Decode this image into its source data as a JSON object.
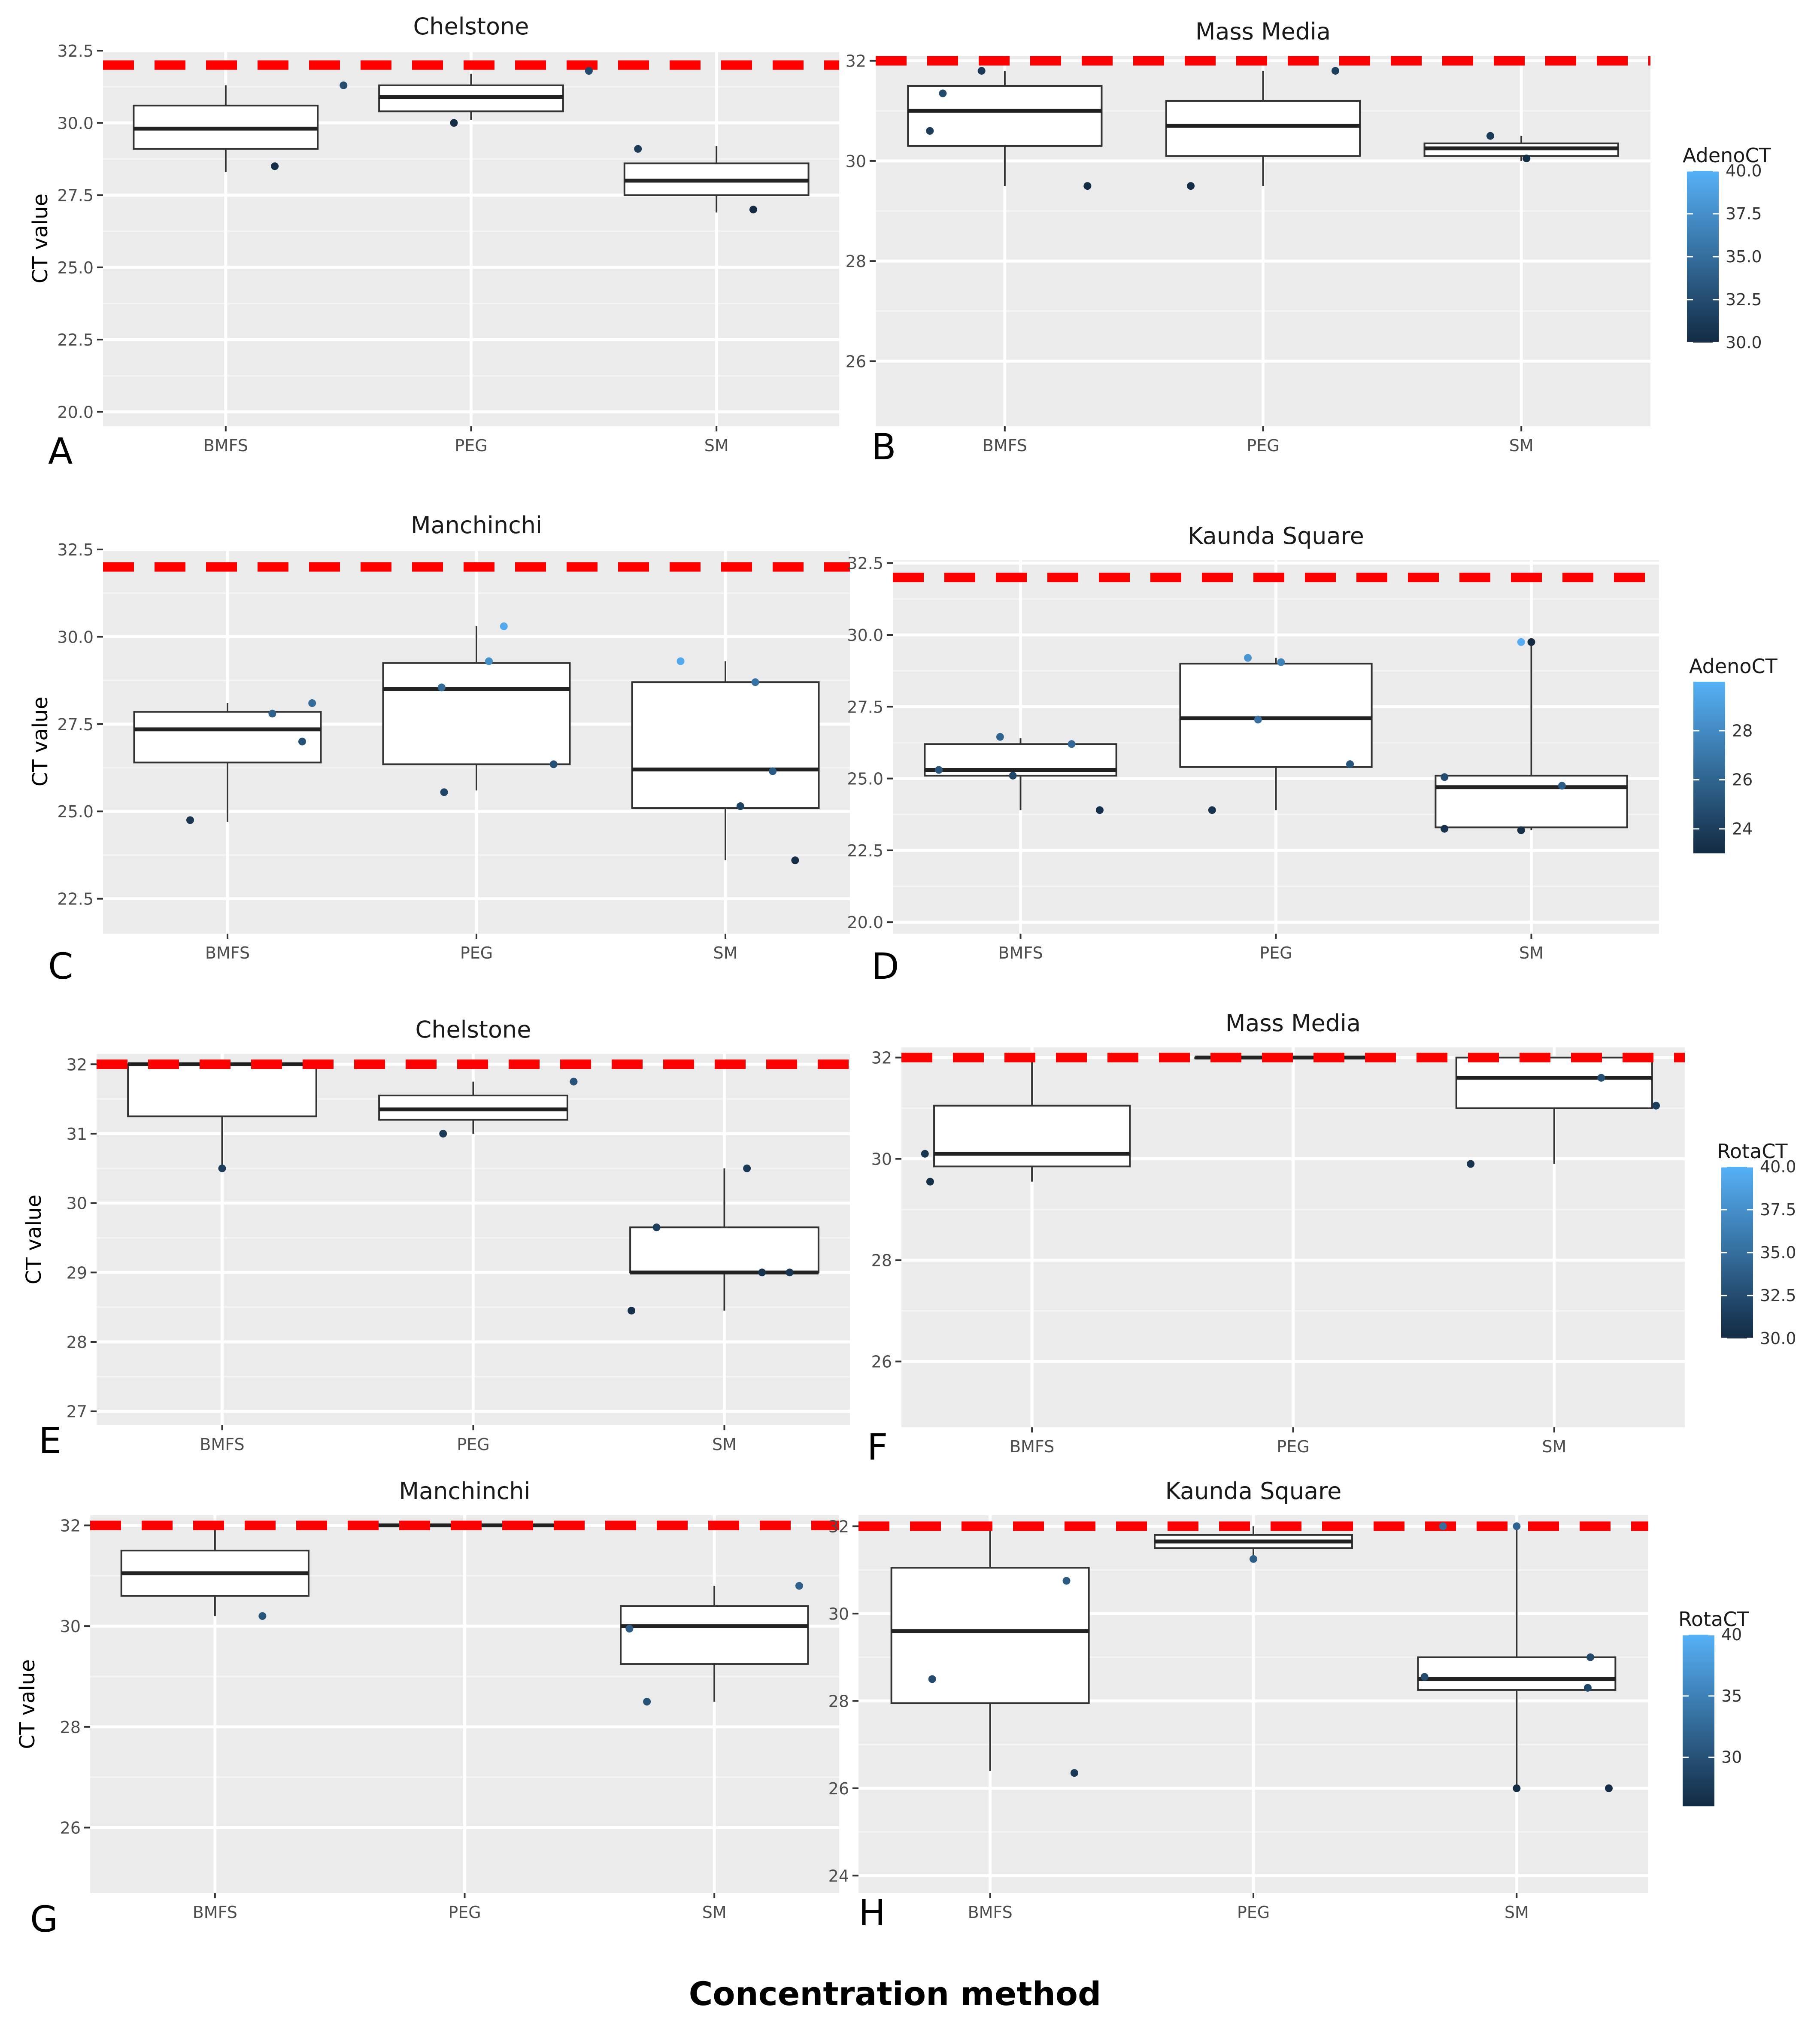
{
  "figure": {
    "xlabel": "Concentration method"
  },
  "colors": {
    "panel_bg": "#ebebeb",
    "grid_major": "#ffffff",
    "grid_minor": "#f4f4f4",
    "threshold": "#ff0000",
    "box_fill": "#ffffff",
    "box_line": "#333333",
    "dot_low": "#132b43",
    "dot_high": "#56b1f7"
  },
  "legends": [
    {
      "title": "AdenoCT",
      "range": [
        30,
        40
      ],
      "ticks": [
        "40.0",
        "37.5",
        "35.0",
        "32.5",
        "30.0"
      ],
      "tick_values": [
        40,
        37.5,
        35,
        32.5,
        30
      ]
    },
    {
      "title": "AdenoCT",
      "range": [
        23,
        30
      ],
      "ticks": [
        "28",
        "26",
        "24"
      ],
      "tick_values": [
        28,
        26,
        24
      ]
    },
    {
      "title": "RotaCT",
      "range": [
        30,
        40
      ],
      "ticks": [
        "40.0",
        "37.5",
        "35.0",
        "32.5",
        "30.0"
      ],
      "tick_values": [
        40,
        37.5,
        35,
        32.5,
        30
      ]
    },
    {
      "title": "RotaCT",
      "range": [
        26,
        40
      ],
      "ticks": [
        "40",
        "35",
        "30"
      ],
      "tick_values": [
        40,
        35,
        30
      ]
    }
  ],
  "chart_data": [
    {
      "panel": "A",
      "type": "box",
      "title": "Chelstone",
      "ylabel": "CT value",
      "threshold": 32,
      "ylim": [
        19.5,
        32.5
      ],
      "yticks": [
        "32.5",
        "30.0",
        "27.5",
        "25.0",
        "22.5",
        "20.0"
      ],
      "ytick_values": [
        32.5,
        30,
        27.5,
        25,
        22.5,
        20
      ],
      "categories": [
        "BMFS",
        "PEG",
        "SM"
      ],
      "boxes": [
        {
          "low": 28.3,
          "q1": 29.1,
          "median": 29.8,
          "q3": 30.6,
          "high": 31.3
        },
        {
          "low": 30.1,
          "q1": 30.4,
          "median": 30.9,
          "q3": 31.3,
          "high": 31.7
        },
        {
          "low": 26.9,
          "q1": 27.5,
          "median": 28.0,
          "q3": 28.6,
          "high": 29.2
        }
      ],
      "points": [
        {
          "cat": 0,
          "dx": 0.2,
          "y": 28.5,
          "c": 30.2
        },
        {
          "cat": 0,
          "dx": 0.48,
          "y": 31.3,
          "c": 32.5
        },
        {
          "cat": 1,
          "dx": -0.07,
          "y": 30.0,
          "c": 30.1
        },
        {
          "cat": 1,
          "dx": 0.48,
          "y": 31.8,
          "c": 32.2
        },
        {
          "cat": 2,
          "dx": -0.32,
          "y": 29.1,
          "c": 31.2
        },
        {
          "cat": 2,
          "dx": 0.15,
          "y": 27.0,
          "c": 30.0
        }
      ]
    },
    {
      "panel": "B",
      "type": "box",
      "title": "Mass Media",
      "ylabel": "",
      "threshold": 32,
      "ylim": [
        24.7,
        32.1
      ],
      "yticks": [
        "32",
        "30",
        "28",
        "26"
      ],
      "ytick_values": [
        32,
        30,
        28,
        26
      ],
      "categories": [
        "BMFS",
        "PEG",
        "SM"
      ],
      "boxes": [
        {
          "low": 29.5,
          "q1": 30.3,
          "median": 31.0,
          "q3": 31.5,
          "high": 31.8
        },
        {
          "low": 29.5,
          "q1": 30.1,
          "median": 30.7,
          "q3": 31.2,
          "high": 31.8
        },
        {
          "low": 30.0,
          "q1": 30.1,
          "median": 30.25,
          "q3": 30.35,
          "high": 30.5
        }
      ],
      "points": [
        {
          "cat": 0,
          "dx": -0.29,
          "y": 30.6,
          "c": 31.3
        },
        {
          "cat": 0,
          "dx": -0.24,
          "y": 31.35,
          "c": 32.4
        },
        {
          "cat": 0,
          "dx": -0.09,
          "y": 31.8,
          "c": 31.0
        },
        {
          "cat": 0,
          "dx": 0.32,
          "y": 29.5,
          "c": 30.0
        },
        {
          "cat": 1,
          "dx": -0.28,
          "y": 29.5,
          "c": 30.1
        },
        {
          "cat": 1,
          "dx": 0.28,
          "y": 31.8,
          "c": 31.4
        },
        {
          "cat": 2,
          "dx": -0.12,
          "y": 30.5,
          "c": 31.2
        },
        {
          "cat": 2,
          "dx": 0.02,
          "y": 30.05,
          "c": 30.2
        }
      ]
    },
    {
      "panel": "C",
      "type": "box",
      "title": "Manchinchi",
      "ylabel": "CT value",
      "threshold": 32,
      "ylim": [
        21.5,
        32.5
      ],
      "yticks": [
        "32.5",
        "30.0",
        "27.5",
        "25.0",
        "22.5"
      ],
      "ytick_values": [
        32.5,
        30,
        27.5,
        25,
        22.5
      ],
      "categories": [
        "BMFS",
        "PEG",
        "SM"
      ],
      "boxes": [
        {
          "low": 24.7,
          "q1": 26.4,
          "median": 27.35,
          "q3": 27.85,
          "high": 28.1
        },
        {
          "low": 25.6,
          "q1": 26.35,
          "median": 28.5,
          "q3": 29.25,
          "high": 30.3
        },
        {
          "low": 23.6,
          "q1": 25.1,
          "median": 26.2,
          "q3": 28.7,
          "high": 29.3
        }
      ],
      "points": [
        {
          "cat": 0,
          "dx": -0.15,
          "y": 24.75,
          "c": 23.6
        },
        {
          "cat": 0,
          "dx": 0.18,
          "y": 27.8,
          "c": 25.8
        },
        {
          "cat": 0,
          "dx": 0.3,
          "y": 27.0,
          "c": 25.0
        },
        {
          "cat": 0,
          "dx": 0.34,
          "y": 28.1,
          "c": 26.4
        },
        {
          "cat": 1,
          "dx": -0.13,
          "y": 25.55,
          "c": 24.3
        },
        {
          "cat": 1,
          "dx": -0.14,
          "y": 28.55,
          "c": 26.4
        },
        {
          "cat": 1,
          "dx": 0.05,
          "y": 29.3,
          "c": 28.2
        },
        {
          "cat": 1,
          "dx": 0.11,
          "y": 30.3,
          "c": 29.6
        },
        {
          "cat": 1,
          "dx": 0.31,
          "y": 26.35,
          "c": 25.0
        },
        {
          "cat": 2,
          "dx": -0.18,
          "y": 29.3,
          "c": 29.6
        },
        {
          "cat": 2,
          "dx": 0.12,
          "y": 28.7,
          "c": 26.8
        },
        {
          "cat": 2,
          "dx": 0.19,
          "y": 26.15,
          "c": 25.4
        },
        {
          "cat": 2,
          "dx": 0.06,
          "y": 25.15,
          "c": 24.2
        },
        {
          "cat": 2,
          "dx": 0.28,
          "y": 23.6,
          "c": 23.2
        }
      ]
    },
    {
      "panel": "D",
      "type": "box",
      "title": "Kaunda Square",
      "ylabel": "",
      "threshold": 32,
      "ylim": [
        19.6,
        32.6
      ],
      "yticks": [
        "32.5",
        "30.0",
        "27.5",
        "25.0",
        "22.5",
        "20.0"
      ],
      "ytick_values": [
        32.5,
        30,
        27.5,
        25,
        22.5,
        20
      ],
      "categories": [
        "BMFS",
        "PEG",
        "SM"
      ],
      "boxes": [
        {
          "low": 23.9,
          "q1": 25.1,
          "median": 25.3,
          "q3": 26.2,
          "high": 26.4
        },
        {
          "low": 23.9,
          "q1": 25.4,
          "median": 27.1,
          "q3": 29.0,
          "high": 29.2
        },
        {
          "low": 23.2,
          "q1": 23.3,
          "median": 24.7,
          "q3": 25.1,
          "high": 29.7
        }
      ],
      "points": [
        {
          "cat": 0,
          "dx": -0.32,
          "y": 25.3,
          "c": 25.2
        },
        {
          "cat": 0,
          "dx": -0.08,
          "y": 26.45,
          "c": 26.0
        },
        {
          "cat": 0,
          "dx": -0.03,
          "y": 25.1,
          "c": 24.5
        },
        {
          "cat": 0,
          "dx": 0.2,
          "y": 26.2,
          "c": 26.2
        },
        {
          "cat": 0,
          "dx": 0.31,
          "y": 23.9,
          "c": 23.3
        },
        {
          "cat": 1,
          "dx": -0.25,
          "y": 23.9,
          "c": 23.4
        },
        {
          "cat": 1,
          "dx": -0.11,
          "y": 29.2,
          "c": 28.6
        },
        {
          "cat": 1,
          "dx": -0.07,
          "y": 27.05,
          "c": 26.6
        },
        {
          "cat": 1,
          "dx": 0.02,
          "y": 29.05,
          "c": 27.6
        },
        {
          "cat": 1,
          "dx": 0.29,
          "y": 25.5,
          "c": 25.2
        },
        {
          "cat": 2,
          "dx": -0.34,
          "y": 23.25,
          "c": 23.4
        },
        {
          "cat": 2,
          "dx": -0.34,
          "y": 25.05,
          "c": 24.8
        },
        {
          "cat": 2,
          "dx": -0.04,
          "y": 23.2,
          "c": 23.2
        },
        {
          "cat": 2,
          "dx": -0.04,
          "y": 29.75,
          "c": 29.8
        },
        {
          "cat": 2,
          "dx": 0.12,
          "y": 24.75,
          "c": 25.6
        },
        {
          "cat": 2,
          "dx": 0,
          "y": 29.75,
          "c": 23.0
        }
      ]
    },
    {
      "panel": "E",
      "type": "box",
      "title": "Chelstone",
      "ylabel": "CT value",
      "threshold": 32,
      "ylim": [
        26.8,
        32.15
      ],
      "yticks": [
        "32",
        "31",
        "30",
        "29",
        "28",
        "27"
      ],
      "ytick_values": [
        32,
        31,
        30,
        29,
        28,
        27
      ],
      "categories": [
        "BMFS",
        "PEG",
        "SM"
      ],
      "boxes": [
        {
          "low": 30.5,
          "q1": 31.25,
          "median": 32.0,
          "q3": 32.0,
          "high": 32.0
        },
        {
          "low": 31.0,
          "q1": 31.2,
          "median": 31.35,
          "q3": 31.55,
          "high": 31.75
        },
        {
          "low": 28.45,
          "q1": 29.0,
          "median": 29.0,
          "q3": 29.65,
          "high": 30.5
        }
      ],
      "points": [
        {
          "cat": 0,
          "dx": 0.0,
          "y": 30.5,
          "c": 31.4
        },
        {
          "cat": 1,
          "dx": -0.12,
          "y": 31.0,
          "c": 31.2
        },
        {
          "cat": 1,
          "dx": 0.4,
          "y": 31.75,
          "c": 33.0
        },
        {
          "cat": 2,
          "dx": -0.37,
          "y": 28.45,
          "c": 30.4
        },
        {
          "cat": 2,
          "dx": -0.27,
          "y": 29.65,
          "c": 31.4
        },
        {
          "cat": 2,
          "dx": 0.09,
          "y": 30.5,
          "c": 31.0
        },
        {
          "cat": 2,
          "dx": 0.15,
          "y": 29.0,
          "c": 30.6
        },
        {
          "cat": 2,
          "dx": 0.26,
          "y": 29.0,
          "c": 30.8
        }
      ]
    },
    {
      "panel": "F",
      "type": "box",
      "title": "Mass Media",
      "ylabel": "",
      "threshold": 32,
      "ylim": [
        24.7,
        32.2
      ],
      "yticks": [
        "32",
        "30",
        "28",
        "26"
      ],
      "ytick_values": [
        32,
        30,
        28,
        26
      ],
      "categories": [
        "BMFS",
        "PEG",
        "SM"
      ],
      "boxes": [
        {
          "low": 29.55,
          "q1": 29.85,
          "median": 30.1,
          "q3": 31.05,
          "high": 32.0
        },
        {
          "low": 32.0,
          "q1": 32.0,
          "median": 32.0,
          "q3": 32.0,
          "high": 32.0
        },
        {
          "low": 29.9,
          "q1": 31.0,
          "median": 31.6,
          "q3": 32.0,
          "high": 32.0
        }
      ],
      "points": [
        {
          "cat": 0,
          "dx": -0.41,
          "y": 30.1,
          "c": 30.8
        },
        {
          "cat": 0,
          "dx": -0.39,
          "y": 29.55,
          "c": 30.4
        },
        {
          "cat": 2,
          "dx": -0.32,
          "y": 29.9,
          "c": 30.6
        },
        {
          "cat": 2,
          "dx": 0.18,
          "y": 31.6,
          "c": 32.6
        },
        {
          "cat": 2,
          "dx": 0.39,
          "y": 31.05,
          "c": 31.4
        }
      ]
    },
    {
      "panel": "G",
      "type": "box",
      "title": "Manchinchi",
      "ylabel": "CT value",
      "threshold": 32,
      "ylim": [
        24.7,
        32.2
      ],
      "yticks": [
        "32",
        "30",
        "28",
        "26"
      ],
      "ytick_values": [
        32,
        30,
        28,
        26
      ],
      "categories": [
        "BMFS",
        "PEG",
        "SM"
      ],
      "boxes": [
        {
          "low": 30.2,
          "q1": 30.6,
          "median": 31.05,
          "q3": 31.5,
          "high": 32.0
        },
        {
          "low": 32.0,
          "q1": 32.0,
          "median": 32.0,
          "q3": 32.0,
          "high": 32.0
        },
        {
          "low": 28.5,
          "q1": 29.25,
          "median": 30.0,
          "q3": 30.4,
          "high": 30.8
        }
      ],
      "points": [
        {
          "cat": 0,
          "dx": 0.19,
          "y": 30.2,
          "c": 30.4
        },
        {
          "cat": 2,
          "dx": -0.34,
          "y": 29.95,
          "c": 31.2
        },
        {
          "cat": 2,
          "dx": -0.27,
          "y": 28.5,
          "c": 30.2
        },
        {
          "cat": 2,
          "dx": 0.34,
          "y": 30.8,
          "c": 31.6
        }
      ]
    },
    {
      "panel": "H",
      "type": "box",
      "title": "Kaunda Square",
      "ylabel": "",
      "threshold": 32,
      "ylim": [
        23.6,
        32.25
      ],
      "yticks": [
        "32",
        "30",
        "28",
        "26",
        "24"
      ],
      "ytick_values": [
        32,
        30,
        28,
        26,
        24
      ],
      "categories": [
        "BMFS",
        "PEG",
        "SM"
      ],
      "boxes": [
        {
          "low": 26.4,
          "q1": 27.95,
          "median": 29.6,
          "q3": 31.05,
          "high": 32.0
        },
        {
          "low": 31.25,
          "q1": 31.5,
          "median": 31.65,
          "q3": 31.8,
          "high": 32.0
        },
        {
          "low": 26.0,
          "q1": 28.25,
          "median": 28.5,
          "q3": 29.0,
          "high": 32.0
        }
      ],
      "points": [
        {
          "cat": 0,
          "dx": -0.22,
          "y": 28.5,
          "c": 29.4
        },
        {
          "cat": 0,
          "dx": 0.29,
          "y": 30.75,
          "c": 31.0
        },
        {
          "cat": 0,
          "dx": 0.32,
          "y": 26.35,
          "c": 27.5
        },
        {
          "cat": 1,
          "dx": 0.0,
          "y": 31.25,
          "c": 31.4
        },
        {
          "cat": 2,
          "dx": -0.28,
          "y": 32.0,
          "c": 33.0
        },
        {
          "cat": 2,
          "dx": 0.0,
          "y": 32.0,
          "c": 32.0
        },
        {
          "cat": 2,
          "dx": 0.0,
          "y": 26.0,
          "c": 26.2
        },
        {
          "cat": 2,
          "dx": 0.28,
          "y": 29.0,
          "c": 29.2
        },
        {
          "cat": 2,
          "dx": 0.27,
          "y": 28.3,
          "c": 29.0
        },
        {
          "cat": 2,
          "dx": 0.35,
          "y": 26.0,
          "c": 26.4
        },
        {
          "cat": 2,
          "dx": -0.35,
          "y": 28.55,
          "c": 29.5
        }
      ]
    }
  ]
}
